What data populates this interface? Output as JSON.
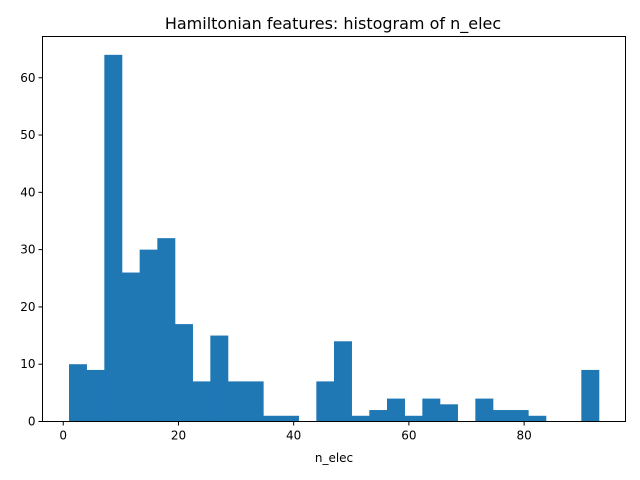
{
  "chart_data": {
    "type": "bar",
    "title": "Hamiltonian features: histogram of n_elec",
    "xlabel": "n_elec",
    "ylabel": "",
    "xlim": [
      -3.6,
      97.6
    ],
    "ylim": [
      0,
      67.2
    ],
    "xticks": [
      0,
      20,
      40,
      60,
      80
    ],
    "yticks": [
      0,
      10,
      20,
      30,
      40,
      50,
      60
    ],
    "bar_color": "#1f77b4",
    "bin_edges": [
      1.0,
      4.0667,
      7.1333,
      10.2,
      13.2667,
      16.3333,
      19.4,
      22.4667,
      25.5333,
      28.6,
      31.6667,
      34.7333,
      37.8,
      40.8667,
      43.9333,
      47.0,
      50.0667,
      53.1333,
      56.2,
      59.2667,
      62.3333,
      65.4,
      68.4667,
      71.5333,
      74.6,
      77.6667,
      80.7333,
      83.8,
      86.8667,
      89.9333,
      93.0
    ],
    "counts": [
      10,
      9,
      64,
      26,
      30,
      32,
      17,
      7,
      15,
      7,
      7,
      1,
      1,
      0,
      7,
      14,
      1,
      2,
      4,
      1,
      4,
      3,
      0,
      4,
      2,
      2,
      1,
      0,
      0,
      9
    ]
  }
}
